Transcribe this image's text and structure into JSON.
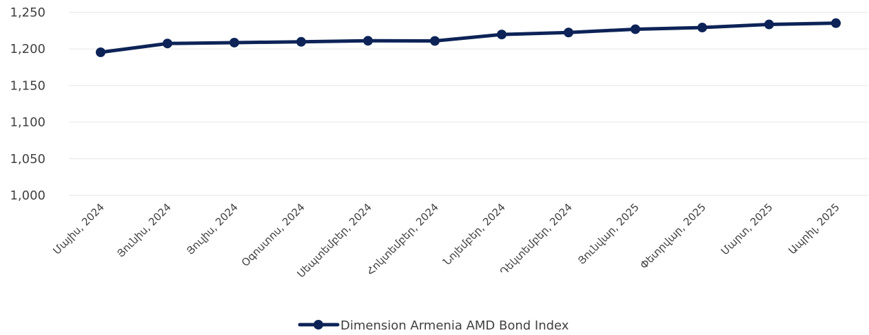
{
  "chart_data": {
    "type": "line",
    "title": "",
    "xlabel": "",
    "ylabel": "",
    "categories": [
      "Մայիս, 2024",
      "Յունիս, 2024",
      "Յուլիս, 2024",
      "Օգոստոս, 2024",
      "Սեպտեմբեր, 2024",
      "Հոկտեմբեր, 2024",
      "Նոյեմբեր, 2024",
      "Դեկտեմբեր, 2024",
      "Յունվար, 2025",
      "Փետրվար, 2025",
      "Մարտ, 2025",
      "Ապրիլ, 2025"
    ],
    "series": [
      {
        "name": "Dimension Armenia AMD Bond Index",
        "color": "#0d2357",
        "values": [
          1195.5,
          1207.5,
          1208.7,
          1209.8,
          1211.2,
          1211.0,
          1219.8,
          1222.5,
          1227.0,
          1229.3,
          1233.5,
          1235.3
        ]
      }
    ],
    "ylim": [
      1000,
      1250
    ],
    "yticks": [
      1000,
      1050,
      1100,
      1150,
      1200,
      1250
    ],
    "ytick_labels": [
      "1,000",
      "1,050",
      "1,100",
      "1,150",
      "1,200",
      "1,250"
    ],
    "grid": true,
    "legend_position": "bottom"
  }
}
